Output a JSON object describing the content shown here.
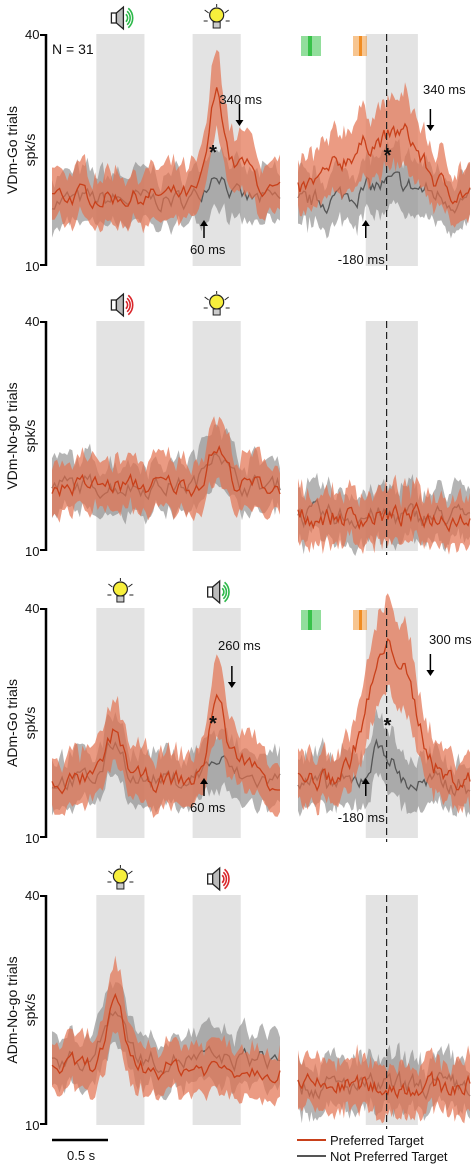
{
  "figure": {
    "n_label": "N = 31",
    "y_unit": "spk/s",
    "scalebar_label": "0.5 s",
    "legend": [
      {
        "label": "Preferred Target",
        "color": "#c8401a"
      },
      {
        "label": "Not Preferred Target",
        "color": "#555555"
      }
    ]
  },
  "colors": {
    "preferred_line": "#c8401a",
    "preferred_band": "#e2714f",
    "nonpreferred_line": "#555555",
    "nonpreferred_band": "#8c8c8c",
    "shade": "#e3e3e3",
    "sound_go": "#2db84a",
    "sound_nogo": "#d9262b",
    "bar_green": "#39c24a",
    "bar_orange": "#f08c22"
  },
  "chart_data": [
    {
      "type": "line",
      "row_label": "VDm-Go trials",
      "ylabel": "spk/s",
      "ylim": [
        10,
        40
      ],
      "tick_labels": [
        "40",
        "10"
      ],
      "stimuli": [
        "speaker-go-icon",
        "lightbulb-icon"
      ],
      "right_bars": true,
      "right_dashed_line": true,
      "annotations": [
        {
          "text": "340 ms",
          "arrow": "down",
          "panel": "left"
        },
        {
          "text": "60 ms",
          "arrow": "up",
          "panel": "left"
        },
        {
          "text": "*",
          "panel": "left"
        },
        {
          "text": "340 ms",
          "arrow": "down",
          "panel": "right"
        },
        {
          "text": "-180 ms",
          "arrow": "up",
          "panel": "right"
        },
        {
          "text": "*",
          "panel": "right"
        }
      ],
      "series": [
        {
          "name": "Preferred Target",
          "left": {
            "baseline": 19,
            "peaks": [
              [
                0.95,
                12.5,
                0.06
              ],
              [
                1.15,
                4,
                0.1
              ]
            ]
          },
          "right": {
            "baseline": 19,
            "peaks": [
              [
                -0.1,
                7,
                0.35
              ],
              [
                0.2,
                3,
                0.12
              ]
            ]
          }
        },
        {
          "name": "Not Preferred Target",
          "left": {
            "baseline": 18.5,
            "peaks": [
              [
                0.95,
                4,
                0.08
              ]
            ]
          },
          "right": {
            "baseline": 18,
            "peaks": [
              [
                0.05,
                2.5,
                0.35
              ]
            ]
          }
        }
      ]
    },
    {
      "type": "line",
      "row_label": "VDm-No-go trials",
      "ylabel": "spk/s",
      "ylim": [
        10,
        40
      ],
      "tick_labels": [
        "40",
        "10"
      ],
      "stimuli": [
        "speaker-nogo-icon",
        "lightbulb-icon"
      ],
      "right_bars": false,
      "right_dashed_line": true,
      "annotations": [],
      "series": [
        {
          "name": "Preferred Target",
          "left": {
            "baseline": 18.5,
            "peaks": [
              [
                0.95,
                5,
                0.07
              ]
            ]
          },
          "right": {
            "baseline": 14.5,
            "peaks": []
          }
        },
        {
          "name": "Not Preferred Target",
          "left": {
            "baseline": 18.5,
            "peaks": [
              [
                0.95,
                5.5,
                0.07
              ]
            ]
          },
          "right": {
            "baseline": 14.5,
            "peaks": []
          }
        }
      ]
    },
    {
      "type": "line",
      "row_label": "ADm-Go trials",
      "ylabel": "spk/s",
      "ylim": [
        10,
        40
      ],
      "tick_labels": [
        "40",
        "10"
      ],
      "stimuli": [
        "lightbulb-icon",
        "speaker-go-icon"
      ],
      "right_bars": true,
      "right_dashed_line": true,
      "annotations": [
        {
          "text": "260 ms",
          "arrow": "down",
          "panel": "left"
        },
        {
          "text": "60 ms",
          "arrow": "up",
          "panel": "left"
        },
        {
          "text": "*",
          "panel": "left"
        },
        {
          "text": "300 ms",
          "arrow": "down",
          "panel": "right"
        },
        {
          "text": "-180 ms",
          "arrow": "up",
          "panel": "right"
        },
        {
          "text": "*",
          "panel": "right"
        }
      ],
      "series": [
        {
          "name": "Preferred Target",
          "left": {
            "baseline": 17.5,
            "peaks": [
              [
                0.15,
                6,
                0.07
              ],
              [
                0.95,
                10.5,
                0.06
              ],
              [
                1.15,
                3,
                0.1
              ]
            ]
          },
          "right": {
            "baseline": 17.5,
            "peaks": [
              [
                -0.02,
                15,
                0.18
              ],
              [
                0.22,
                6,
                0.15
              ]
            ]
          }
        },
        {
          "name": "Not Preferred Target",
          "left": {
            "baseline": 17.5,
            "peaks": [
              [
                0.15,
                5,
                0.07
              ],
              [
                0.95,
                2.5,
                0.1
              ]
            ]
          },
          "right": {
            "baseline": 17,
            "peaks": [
              [
                -0.05,
                5,
                0.1
              ]
            ]
          }
        }
      ]
    },
    {
      "type": "line",
      "row_label": "ADm-No-go trials",
      "ylabel": "spk/s",
      "ylim": [
        10,
        40
      ],
      "tick_labels": [
        "40",
        "10"
      ],
      "stimuli": [
        "lightbulb-icon",
        "speaker-nogo-icon"
      ],
      "right_bars": false,
      "right_dashed_line": true,
      "annotations": [],
      "series": [
        {
          "name": "Preferred Target",
          "left": {
            "baseline": 17.5,
            "peaks": [
              [
                0.15,
                7.5,
                0.07
              ]
            ]
          },
          "right": {
            "baseline": 15,
            "peaks": []
          }
        },
        {
          "name": "Not Preferred Target",
          "left": {
            "baseline": 18.5,
            "peaks": [
              [
                0.15,
                7,
                0.08
              ]
            ]
          },
          "right": {
            "baseline": 15,
            "peaks": []
          }
        }
      ]
    }
  ]
}
